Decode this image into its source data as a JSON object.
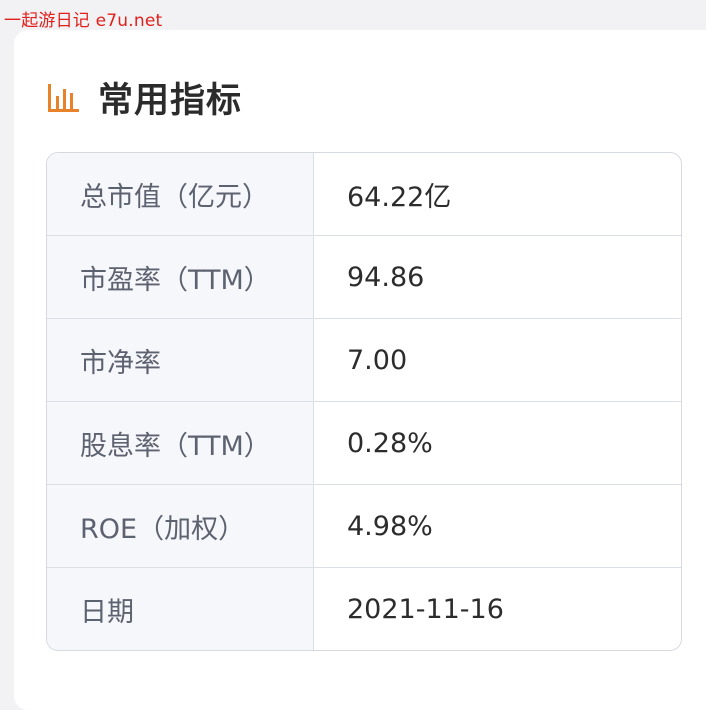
{
  "watermark": "一起游日记 e7u.net",
  "section": {
    "title": "常用指标",
    "icon": "bar-chart-icon",
    "accent": "#e8822a"
  },
  "metrics": [
    {
      "label": "总市值（亿元）",
      "value": "64.22亿"
    },
    {
      "label": "市盈率（TTM）",
      "value": "94.86"
    },
    {
      "label": "市净率",
      "value": "7.00"
    },
    {
      "label": "股息率（TTM）",
      "value": "0.28%"
    },
    {
      "label": "ROE（加权）",
      "value": "4.98%"
    },
    {
      "label": "日期",
      "value": "2021-11-16"
    }
  ]
}
